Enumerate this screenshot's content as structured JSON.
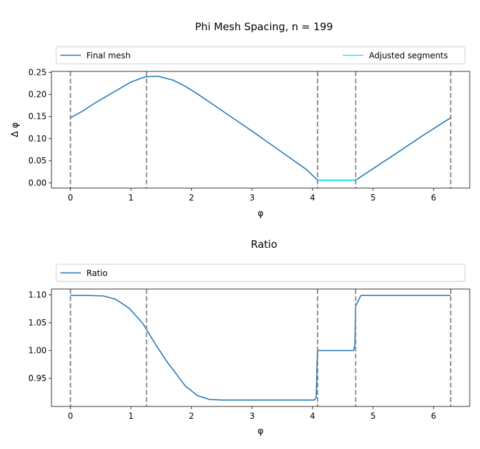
{
  "chart_data": [
    {
      "type": "line",
      "title": "Phi Mesh Spacing, n = 199",
      "xlabel": "φ",
      "ylabel": "Δ φ",
      "xlim": [
        -0.314,
        6.597
      ],
      "ylim": [
        -0.012,
        0.252
      ],
      "xticks": [
        0,
        1,
        2,
        3,
        4,
        5,
        6
      ],
      "yticks": [
        0.0,
        0.05,
        0.1,
        0.15,
        0.2,
        0.25
      ],
      "ytick_labels": [
        "0.00",
        "0.05",
        "0.10",
        "0.15",
        "0.20",
        "0.25"
      ],
      "vlines": [
        0,
        1.257,
        4.084,
        4.712,
        6.283
      ],
      "legend": {
        "placement": "above-plot",
        "entries": [
          "Final mesh",
          "Adjusted segments"
        ]
      },
      "series": [
        {
          "name": "Final mesh",
          "color": "#1f77b4",
          "x": [
            0.0,
            0.2,
            0.4,
            0.6,
            0.8,
            1.0,
            1.2,
            1.257,
            1.45,
            1.7,
            1.9,
            2.1,
            2.4,
            2.7,
            3.0,
            3.3,
            3.6,
            3.9,
            4.084,
            4.712,
            5.0,
            5.4,
            5.8,
            6.283
          ],
          "y": [
            0.147,
            0.162,
            0.18,
            0.196,
            0.212,
            0.228,
            0.238,
            0.24,
            0.241,
            0.232,
            0.218,
            0.201,
            0.173,
            0.145,
            0.117,
            0.088,
            0.059,
            0.03,
            0.006,
            0.006,
            0.032,
            0.068,
            0.105,
            0.147
          ]
        },
        {
          "name": "Adjusted segments",
          "color": "#00e5ee",
          "x": [
            4.084,
            4.712
          ],
          "y": [
            0.006,
            0.006
          ]
        }
      ]
    },
    {
      "type": "line",
      "title": "Ratio",
      "xlabel": "φ",
      "ylabel": "",
      "xlim": [
        -0.314,
        6.597
      ],
      "ylim": [
        0.8995,
        1.1105
      ],
      "xticks": [
        0,
        1,
        2,
        3,
        4,
        5,
        6
      ],
      "yticks": [
        0.95,
        1.0,
        1.05,
        1.1
      ],
      "ytick_labels": [
        "0.95",
        "1.00",
        "1.05",
        "1.10"
      ],
      "vlines": [
        0,
        1.257,
        4.084,
        4.712,
        6.283
      ],
      "legend": {
        "placement": "above-plot",
        "entries": [
          "Ratio"
        ]
      },
      "series": [
        {
          "name": "Ratio",
          "color": "#1f77b4",
          "x": [
            0.0,
            0.3,
            0.55,
            0.75,
            0.97,
            1.2,
            1.4,
            1.6,
            1.7,
            1.9,
            2.1,
            2.3,
            2.5,
            2.8,
            3.2,
            3.6,
            3.9,
            4.03,
            4.06,
            4.075,
            4.084,
            4.3,
            4.5,
            4.68,
            4.7,
            4.712,
            4.8,
            5.2,
            5.6,
            6.0,
            6.283
          ],
          "y": [
            1.099,
            1.099,
            1.098,
            1.092,
            1.076,
            1.048,
            1.012,
            0.979,
            0.965,
            0.936,
            0.919,
            0.912,
            0.911,
            0.911,
            0.911,
            0.911,
            0.911,
            0.911,
            0.915,
            0.98,
            1.0,
            1.0,
            1.0,
            1.0,
            1.01,
            1.08,
            1.099,
            1.099,
            1.099,
            1.099,
            1.099
          ]
        }
      ]
    }
  ]
}
